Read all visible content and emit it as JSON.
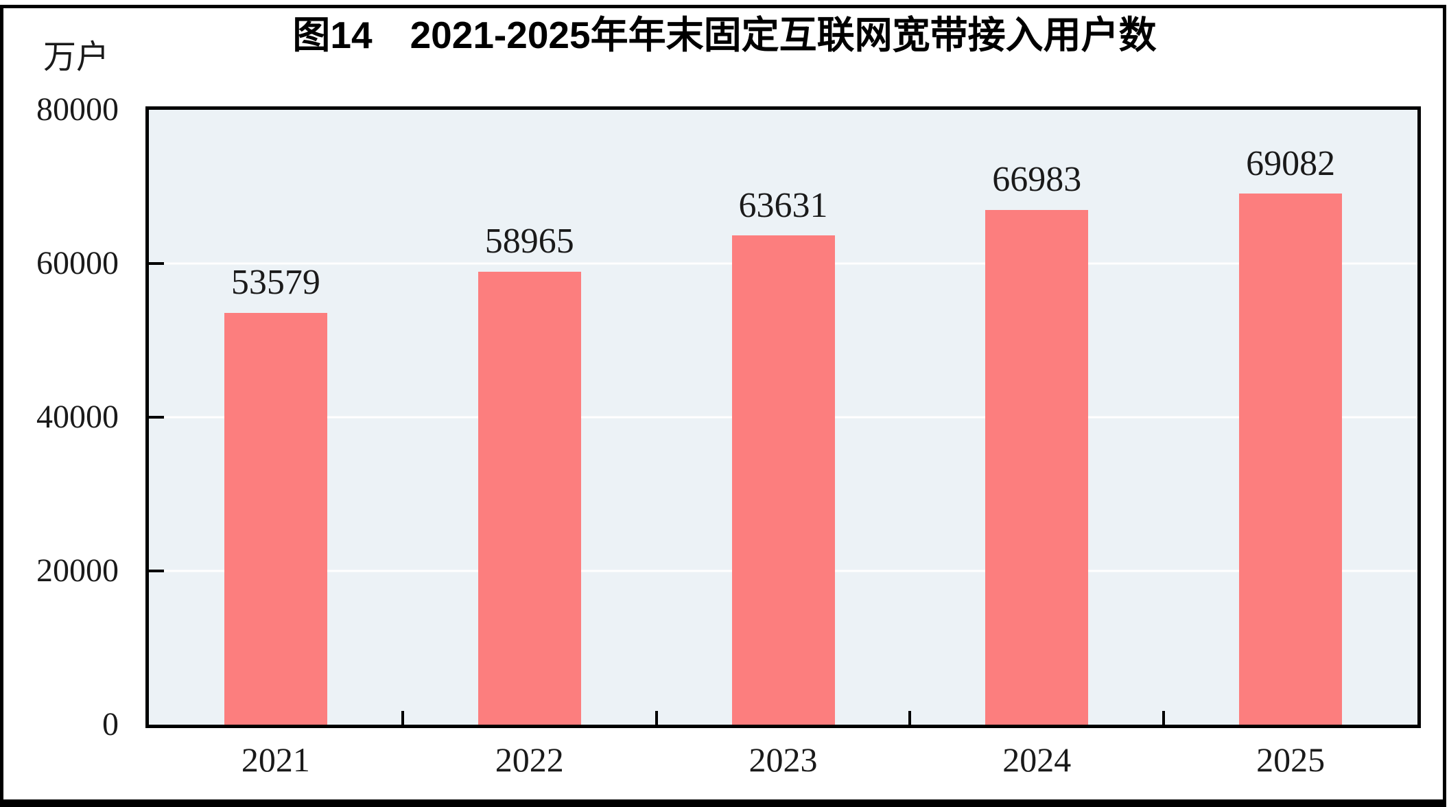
{
  "chart_data": {
    "type": "bar",
    "title": "图14　2021-2025年年末固定互联网宽带接入用户数",
    "unit_label": "万户",
    "categories": [
      "2021",
      "2022",
      "2023",
      "2024",
      "2025"
    ],
    "values": [
      53579,
      58965,
      63631,
      66983,
      69082
    ],
    "ylabel": "万户",
    "xlabel": "",
    "ylim": [
      0,
      80000
    ],
    "yticks": [
      0,
      20000,
      40000,
      60000,
      80000
    ],
    "grid": "horizontal",
    "legend": "none",
    "bar_value_labels_shown": true
  },
  "colors": {
    "bar": "#FC7E7E",
    "plot_background": "#ECF2F6",
    "gridline": "#FFFFFF",
    "axis": "#000000",
    "text": "#1A1A1A",
    "frame": "#000000"
  }
}
